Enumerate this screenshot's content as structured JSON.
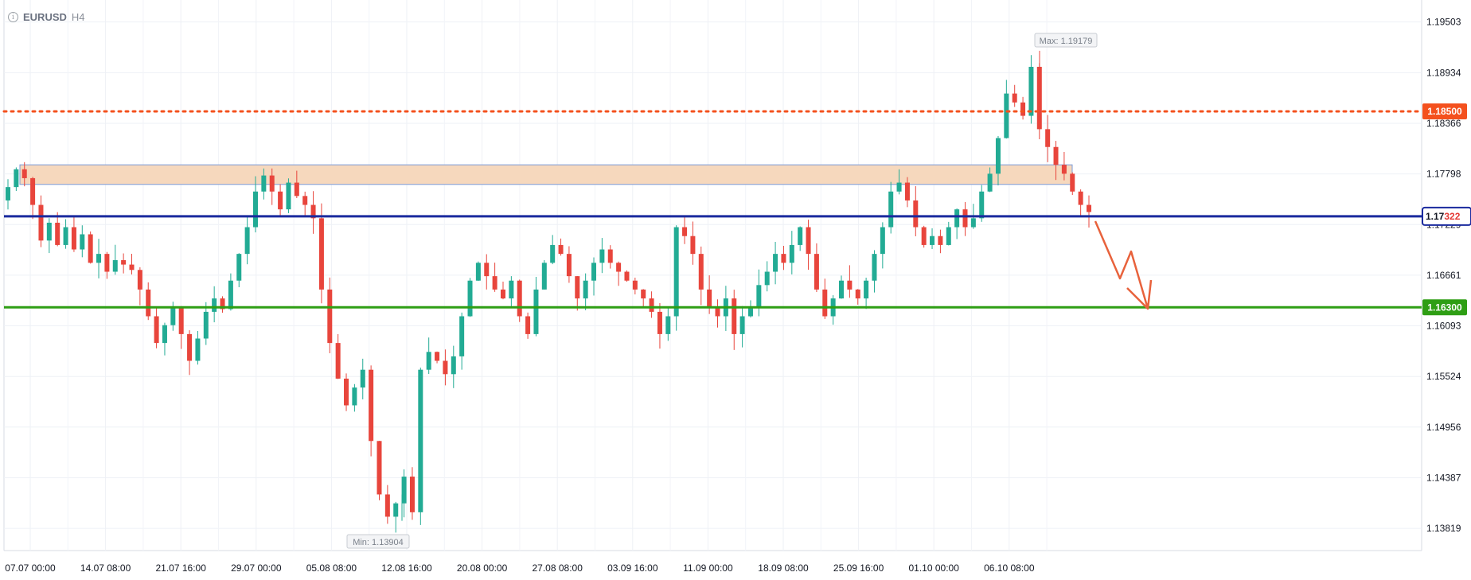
{
  "header": {
    "symbol": "EURUSD",
    "timeframe": "H4",
    "info_icon": "info-icon"
  },
  "chart_data": {
    "type": "candlestick",
    "symbol": "EURUSD",
    "timeframe": "H4",
    "ylim": [
      1.1357,
      1.1975
    ],
    "y_ticks": [
      "1.19503",
      "1.18934",
      "1.18366",
      "1.17798",
      "1.17229",
      "1.16661",
      "1.16093",
      "1.15524",
      "1.14956",
      "1.14387",
      "1.13819"
    ],
    "x_ticks": [
      "07.07 00:00",
      "14.07 08:00",
      "21.07 16:00",
      "29.07 00:00",
      "05.08 08:00",
      "12.08 16:00",
      "20.08 00:00",
      "27.08 08:00",
      "03.09 16:00",
      "11.09 00:00",
      "18.09 08:00",
      "25.09 16:00",
      "01.10 00:00",
      "06.10 08:00"
    ],
    "max_label": "Max: 1.19179",
    "min_label": "Min: 1.13904",
    "max_value": 1.19179,
    "min_value": 1.13904,
    "current_price": {
      "label_dark": "1.17",
      "label_red": "322",
      "value": 1.17322,
      "color": "#1a2a9e"
    },
    "resistance_line": {
      "label": "1.18500",
      "value": 1.185,
      "color": "#f4511e",
      "style": "dotted"
    },
    "support_line": {
      "label": "1.16300",
      "value": 1.163,
      "color": "#2e9e14",
      "style": "solid"
    },
    "zone": {
      "from": 1.1768,
      "to": 1.179,
      "fill": "#f6d8bd",
      "border": "#7b9bd8"
    },
    "bull_color": "#22ab94",
    "bear_color": "#e8453c",
    "close_path": [
      1.1765,
      1.1785,
      1.1775,
      1.1745,
      1.1705,
      1.1725,
      1.17,
      1.172,
      1.1695,
      1.1712,
      1.168,
      1.169,
      1.167,
      1.1683,
      1.1678,
      1.1672,
      1.165,
      1.162,
      1.159,
      1.161,
      1.163,
      1.16,
      1.157,
      1.1595,
      1.1625,
      1.164,
      1.1628,
      1.166,
      1.169,
      1.172,
      1.176,
      1.1778,
      1.176,
      1.174,
      1.177,
      1.1755,
      1.1745,
      1.173,
      1.165,
      1.159,
      1.155,
      1.152,
      1.154,
      1.156,
      1.148,
      1.142,
      1.1395,
      1.141,
      1.144,
      1.14,
      1.156,
      1.158,
      1.157,
      1.1555,
      1.1575,
      1.162,
      1.166,
      1.168,
      1.1665,
      1.165,
      1.164,
      1.166,
      1.162,
      1.16,
      1.165,
      1.168,
      1.17,
      1.169,
      1.1665,
      1.164,
      1.166,
      1.168,
      1.1695,
      1.168,
      1.167,
      1.166,
      1.165,
      1.164,
      1.1625,
      1.16,
      1.162,
      1.172,
      1.171,
      1.169,
      1.165,
      1.163,
      1.162,
      1.164,
      1.16,
      1.162,
      1.163,
      1.1655,
      1.167,
      1.169,
      1.168,
      1.17,
      1.172,
      1.169,
      1.165,
      1.162,
      1.164,
      1.166,
      1.165,
      1.164,
      1.166,
      1.169,
      1.172,
      1.176,
      1.177,
      1.175,
      1.172,
      1.17,
      1.171,
      1.17,
      1.172,
      1.174,
      1.172,
      1.173,
      1.176,
      1.178,
      1.182,
      1.187,
      1.186,
      1.1845,
      1.19,
      1.183,
      1.181,
      1.179,
      1.178,
      1.176,
      1.1745,
      1.1737
    ]
  },
  "forecast": {
    "color": "#e8623c",
    "description": "projected move arrow"
  }
}
